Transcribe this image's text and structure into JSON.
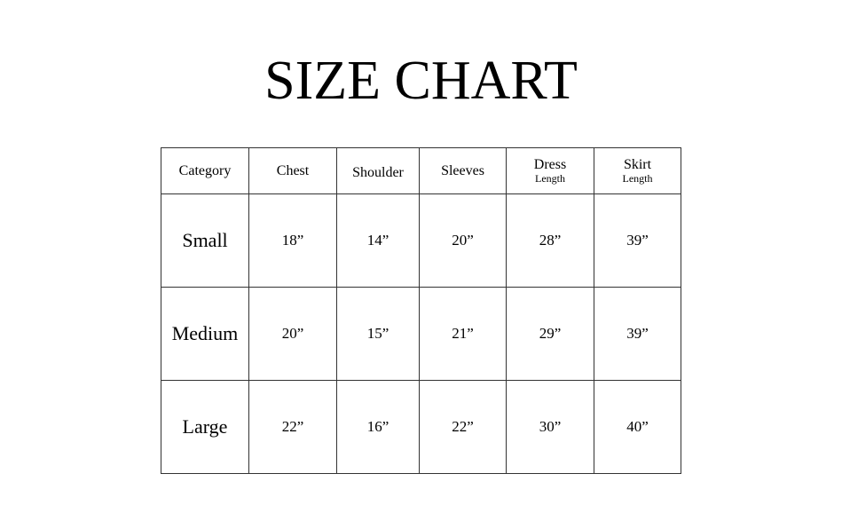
{
  "title": "SIZE CHART",
  "table": {
    "headers": [
      {
        "main": "Category",
        "sub": ""
      },
      {
        "main": "Chest",
        "sub": ""
      },
      {
        "main": "Shoulder",
        "sub": ""
      },
      {
        "main": "Sleeves",
        "sub": ""
      },
      {
        "main": "Dress",
        "sub": "Length"
      },
      {
        "main": "Skirt",
        "sub": "Length"
      }
    ],
    "rows": [
      [
        "Small",
        "18”",
        "14”",
        "20”",
        "28”",
        "39”"
      ],
      [
        "Medium",
        "20”",
        "15”",
        "21”",
        "29”",
        "39”"
      ],
      [
        "Large",
        "22”",
        "16”",
        "22”",
        "30”",
        "40”"
      ]
    ]
  }
}
